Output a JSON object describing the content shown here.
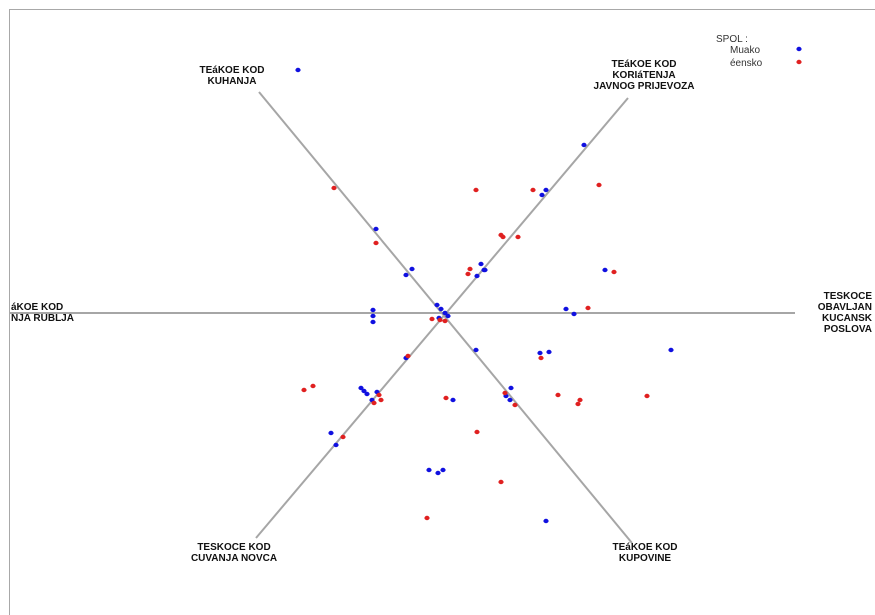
{
  "chart_data": {
    "type": "scatter",
    "title": "",
    "legend": {
      "title": "SPOL :",
      "placement": "top-right",
      "entries": [
        {
          "name": "Muško",
          "label": "Muako",
          "color": "#1010e0"
        },
        {
          "name": "Žensko",
          "label": "éensko",
          "color": "#e02020"
        }
      ]
    },
    "axes": [
      {
        "name": "kuhanja",
        "label_lines": [
          "TEáKOE KOD",
          "KUHANJA"
        ]
      },
      {
        "name": "javni_prijevoz",
        "label_lines": [
          "TEáKOE KOD",
          "KORIáTENJA",
          "JAVNOG PRIJEVOZA"
        ]
      },
      {
        "name": "pranje_rublja",
        "label_lines": [
          "áKOE KOD",
          "NJA RUBLJA"
        ]
      },
      {
        "name": "kucanski_poslovi",
        "label_lines": [
          "TESKOCE",
          "OBAVLJAN",
          "KUCANSK",
          "POSLOVA"
        ]
      },
      {
        "name": "cuvanje_novca",
        "label_lines": [
          "TESKOCE KOD",
          "CUVANJA NOVCA"
        ]
      },
      {
        "name": "kupovina",
        "label_lines": [
          "TEáKOE KOD",
          "KUPOVINE"
        ]
      }
    ],
    "series": [
      {
        "name": "Muško",
        "points": [
          [
            298,
            70
          ],
          [
            584,
            145
          ],
          [
            546,
            190
          ],
          [
            542,
            195
          ],
          [
            376,
            229
          ],
          [
            412,
            269
          ],
          [
            406,
            275
          ],
          [
            481,
            264
          ],
          [
            484,
            270
          ],
          [
            477,
            276
          ],
          [
            485,
            270
          ],
          [
            605,
            270
          ],
          [
            373,
            310
          ],
          [
            373,
            316
          ],
          [
            373,
            322
          ],
          [
            437,
            305
          ],
          [
            441,
            309
          ],
          [
            445,
            313
          ],
          [
            448,
            316
          ],
          [
            439,
            318
          ],
          [
            566,
            309
          ],
          [
            574,
            314
          ],
          [
            671,
            350
          ],
          [
            549,
            352
          ],
          [
            540,
            353
          ],
          [
            476,
            350
          ],
          [
            406,
            358
          ],
          [
            361,
            388
          ],
          [
            364,
            391
          ],
          [
            367,
            394
          ],
          [
            377,
            392
          ],
          [
            372,
            400
          ],
          [
            453,
            400
          ],
          [
            506,
            396
          ],
          [
            511,
            388
          ],
          [
            510,
            400
          ],
          [
            331,
            433
          ],
          [
            336,
            445
          ],
          [
            429,
            470
          ],
          [
            438,
            473
          ],
          [
            443,
            470
          ],
          [
            546,
            521
          ]
        ]
      },
      {
        "name": "Žensko",
        "points": [
          [
            334,
            188
          ],
          [
            476,
            190
          ],
          [
            533,
            190
          ],
          [
            599,
            185
          ],
          [
            376,
            243
          ],
          [
            501,
            235
          ],
          [
            503,
            237
          ],
          [
            518,
            237
          ],
          [
            470,
            269
          ],
          [
            468,
            274
          ],
          [
            614,
            272
          ],
          [
            588,
            308
          ],
          [
            432,
            319
          ],
          [
            440,
            320
          ],
          [
            445,
            321
          ],
          [
            541,
            358
          ],
          [
            408,
            356
          ],
          [
            304,
            390
          ],
          [
            313,
            386
          ],
          [
            379,
            395
          ],
          [
            381,
            400
          ],
          [
            374,
            403
          ],
          [
            446,
            398
          ],
          [
            558,
            395
          ],
          [
            580,
            400
          ],
          [
            578,
            404
          ],
          [
            647,
            396
          ],
          [
            505,
            393
          ],
          [
            515,
            405
          ],
          [
            343,
            437
          ],
          [
            477,
            432
          ],
          [
            501,
            482
          ],
          [
            427,
            518
          ]
        ]
      }
    ]
  }
}
